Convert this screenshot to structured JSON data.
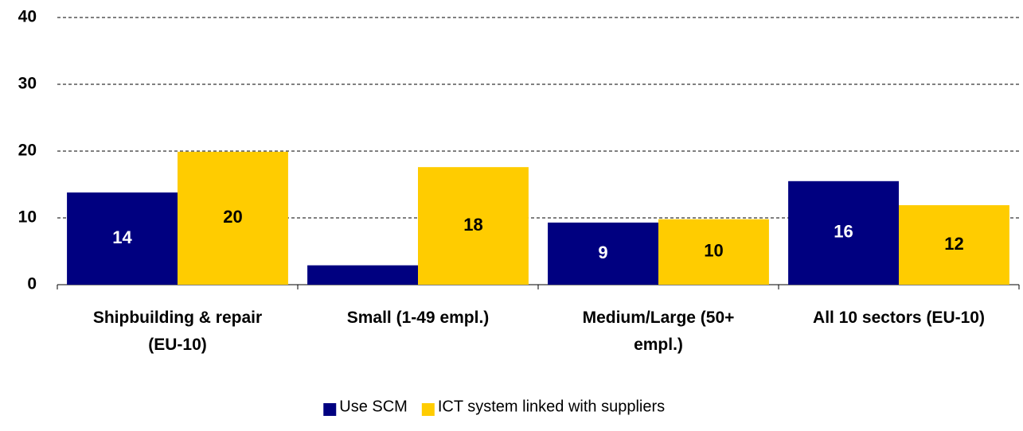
{
  "chart_data": {
    "type": "bar",
    "categories": [
      "Shipbuilding & repair (EU-10)",
      "Small (1-49 empl.)",
      "Medium/Large (50+ empl.)",
      "All 10 sectors (EU-10)"
    ],
    "series": [
      {
        "name": "Use SCM",
        "color": "#000080",
        "values": [
          13.8,
          2.9,
          9.3,
          15.5
        ],
        "value_labels": [
          "14",
          null,
          "9",
          "16"
        ]
      },
      {
        "name": "ICT system linked with suppliers",
        "color": "#ffcc00",
        "values": [
          19.9,
          17.6,
          9.8,
          11.9
        ],
        "value_labels": [
          "20",
          "18",
          "10",
          "12"
        ]
      }
    ],
    "ylim": [
      0,
      40
    ],
    "yticks": [
      0,
      10,
      20,
      30,
      40
    ],
    "grid": true,
    "legend": "bottom"
  }
}
